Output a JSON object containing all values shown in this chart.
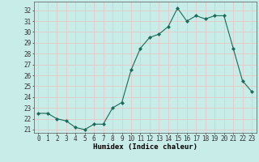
{
  "x": [
    0,
    1,
    2,
    3,
    4,
    5,
    6,
    7,
    8,
    9,
    10,
    11,
    12,
    13,
    14,
    15,
    16,
    17,
    18,
    19,
    20,
    21,
    22,
    23
  ],
  "y": [
    22.5,
    22.5,
    22.0,
    21.8,
    21.2,
    21.0,
    21.5,
    21.5,
    23.0,
    23.5,
    26.5,
    28.5,
    29.5,
    29.8,
    30.5,
    32.2,
    31.0,
    31.5,
    31.2,
    31.5,
    31.5,
    28.5,
    25.5,
    24.5
  ],
  "line_color": "#1a6b5a",
  "marker": "D",
  "marker_size": 2.0,
  "bg_color": "#c8ece8",
  "grid_color": "#e8c8c8",
  "xlabel": "Humidex (Indice chaleur)",
  "ylim": [
    20.7,
    32.8
  ],
  "yticks": [
    21,
    22,
    23,
    24,
    25,
    26,
    27,
    28,
    29,
    30,
    31,
    32
  ],
  "xticks": [
    0,
    1,
    2,
    3,
    4,
    5,
    6,
    7,
    8,
    9,
    10,
    11,
    12,
    13,
    14,
    15,
    16,
    17,
    18,
    19,
    20,
    21,
    22,
    23
  ],
  "tick_fontsize": 5.5,
  "xlabel_fontsize": 6.5,
  "xlim": [
    -0.5,
    23.5
  ]
}
